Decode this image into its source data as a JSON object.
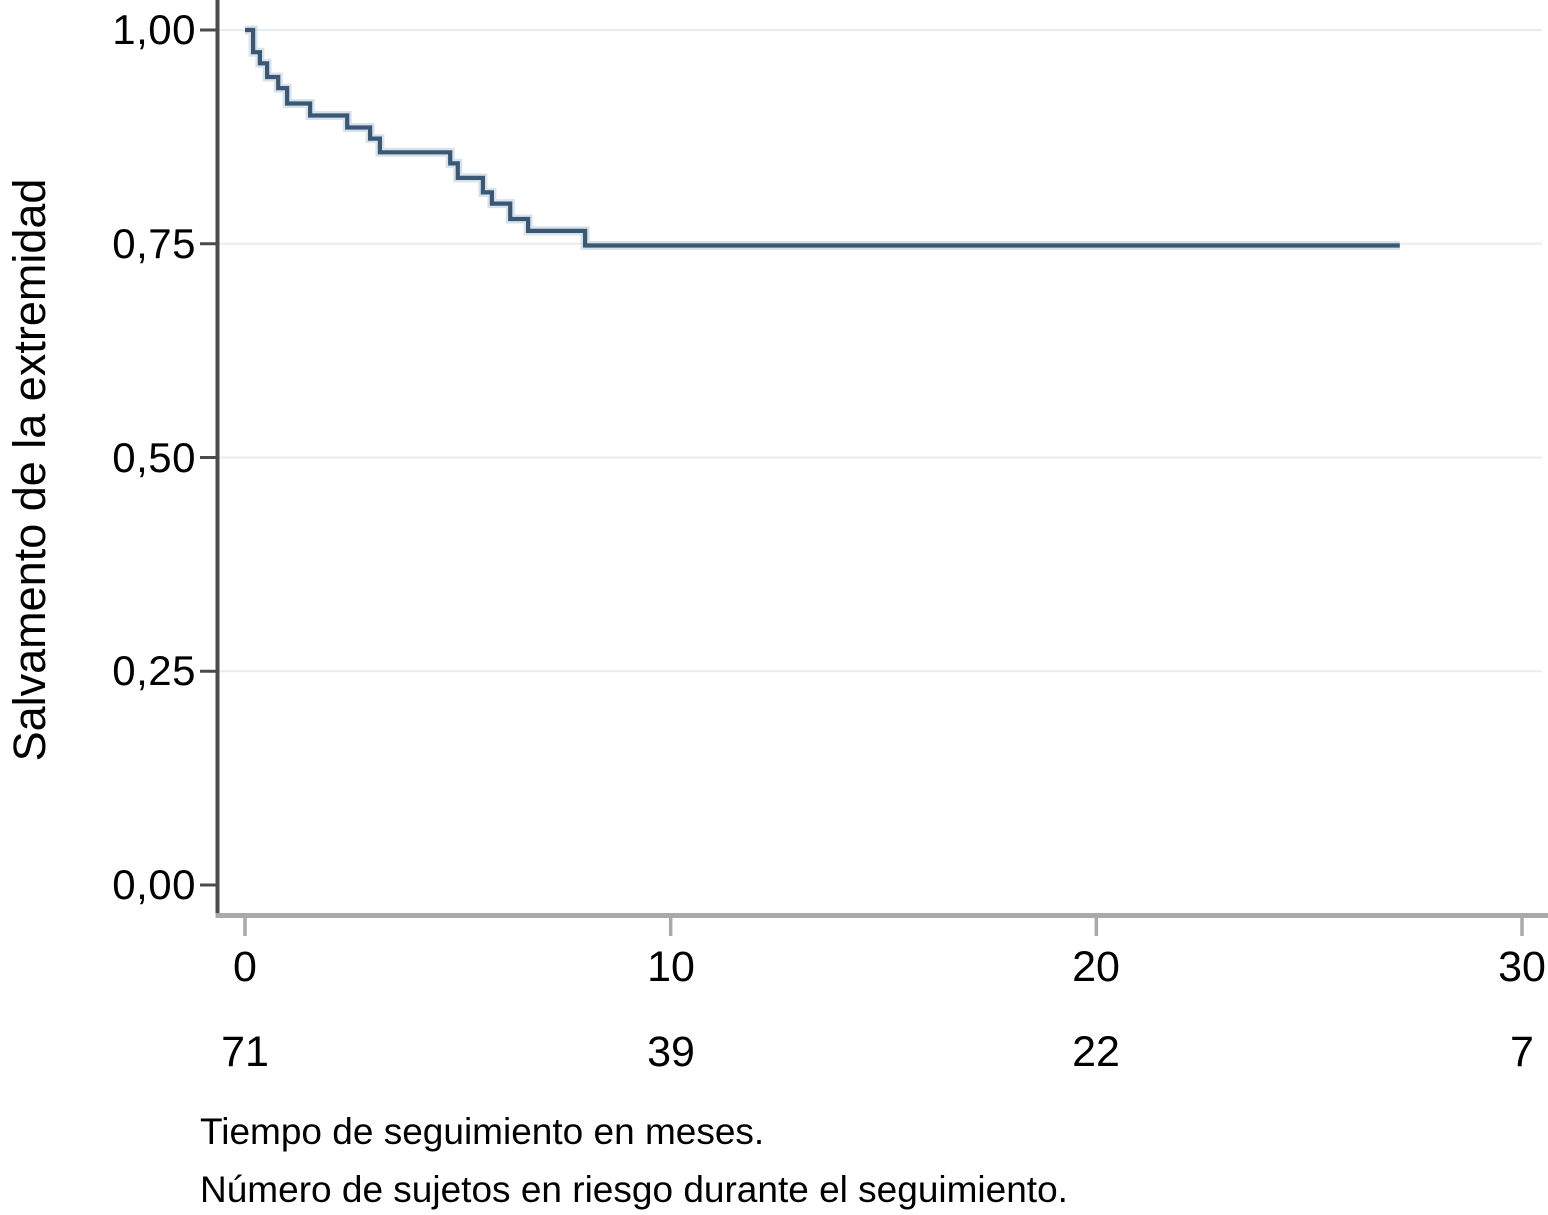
{
  "chart_data": {
    "type": "line",
    "subtype": "kaplan_meier_step_curve",
    "title": "",
    "ylabel": "Salvamento de la extremidad",
    "captions": [
      "Tiempo de seguimiento en meses.",
      "Número de sujetos en riesgo durante el seguimiento."
    ],
    "xlim": [
      0,
      30
    ],
    "ylim": [
      0.0,
      1.0
    ],
    "grid": "horizontal-light",
    "legend": "none",
    "yticks": [
      {
        "value": 1.0,
        "label": "1,00"
      },
      {
        "value": 0.75,
        "label": "0,75"
      },
      {
        "value": 0.5,
        "label": "0,50"
      },
      {
        "value": 0.25,
        "label": "0,25"
      },
      {
        "value": 0.0,
        "label": "0,00"
      }
    ],
    "xticks": [
      {
        "value": 0,
        "label": "0"
      },
      {
        "value": 10,
        "label": "10"
      },
      {
        "value": 20,
        "label": "20"
      },
      {
        "value": 30,
        "label": "30"
      }
    ],
    "at_risk": [
      {
        "time": 0,
        "label": "71"
      },
      {
        "time": 10,
        "label": "39"
      },
      {
        "time": 20,
        "label": "22"
      },
      {
        "time": 30,
        "label": "7"
      }
    ],
    "steps": [
      {
        "t": 0.0,
        "s": 1.0
      },
      {
        "t": 0.19,
        "s": 0.974
      },
      {
        "t": 0.35,
        "s": 0.961
      },
      {
        "t": 0.52,
        "s": 0.945
      },
      {
        "t": 0.78,
        "s": 0.932
      },
      {
        "t": 0.99,
        "s": 0.914
      },
      {
        "t": 1.53,
        "s": 0.9
      },
      {
        "t": 2.4,
        "s": 0.886
      },
      {
        "t": 2.94,
        "s": 0.873
      },
      {
        "t": 3.17,
        "s": 0.857
      },
      {
        "t": 4.82,
        "s": 0.844
      },
      {
        "t": 5.0,
        "s": 0.827
      },
      {
        "t": 5.59,
        "s": 0.81
      },
      {
        "t": 5.8,
        "s": 0.797
      },
      {
        "t": 6.23,
        "s": 0.779
      },
      {
        "t": 6.65,
        "s": 0.765
      },
      {
        "t": 7.99,
        "s": 0.748
      }
    ],
    "curve_end_t": 27.13,
    "colors": {
      "line": "#3a5873",
      "line_halo": "#a9bfd2",
      "y_axis": "#4b4b4b",
      "x_axis": "#a9a9a9",
      "grid": "#e6edf2",
      "text": "#000000",
      "background": "#ffffff"
    }
  }
}
